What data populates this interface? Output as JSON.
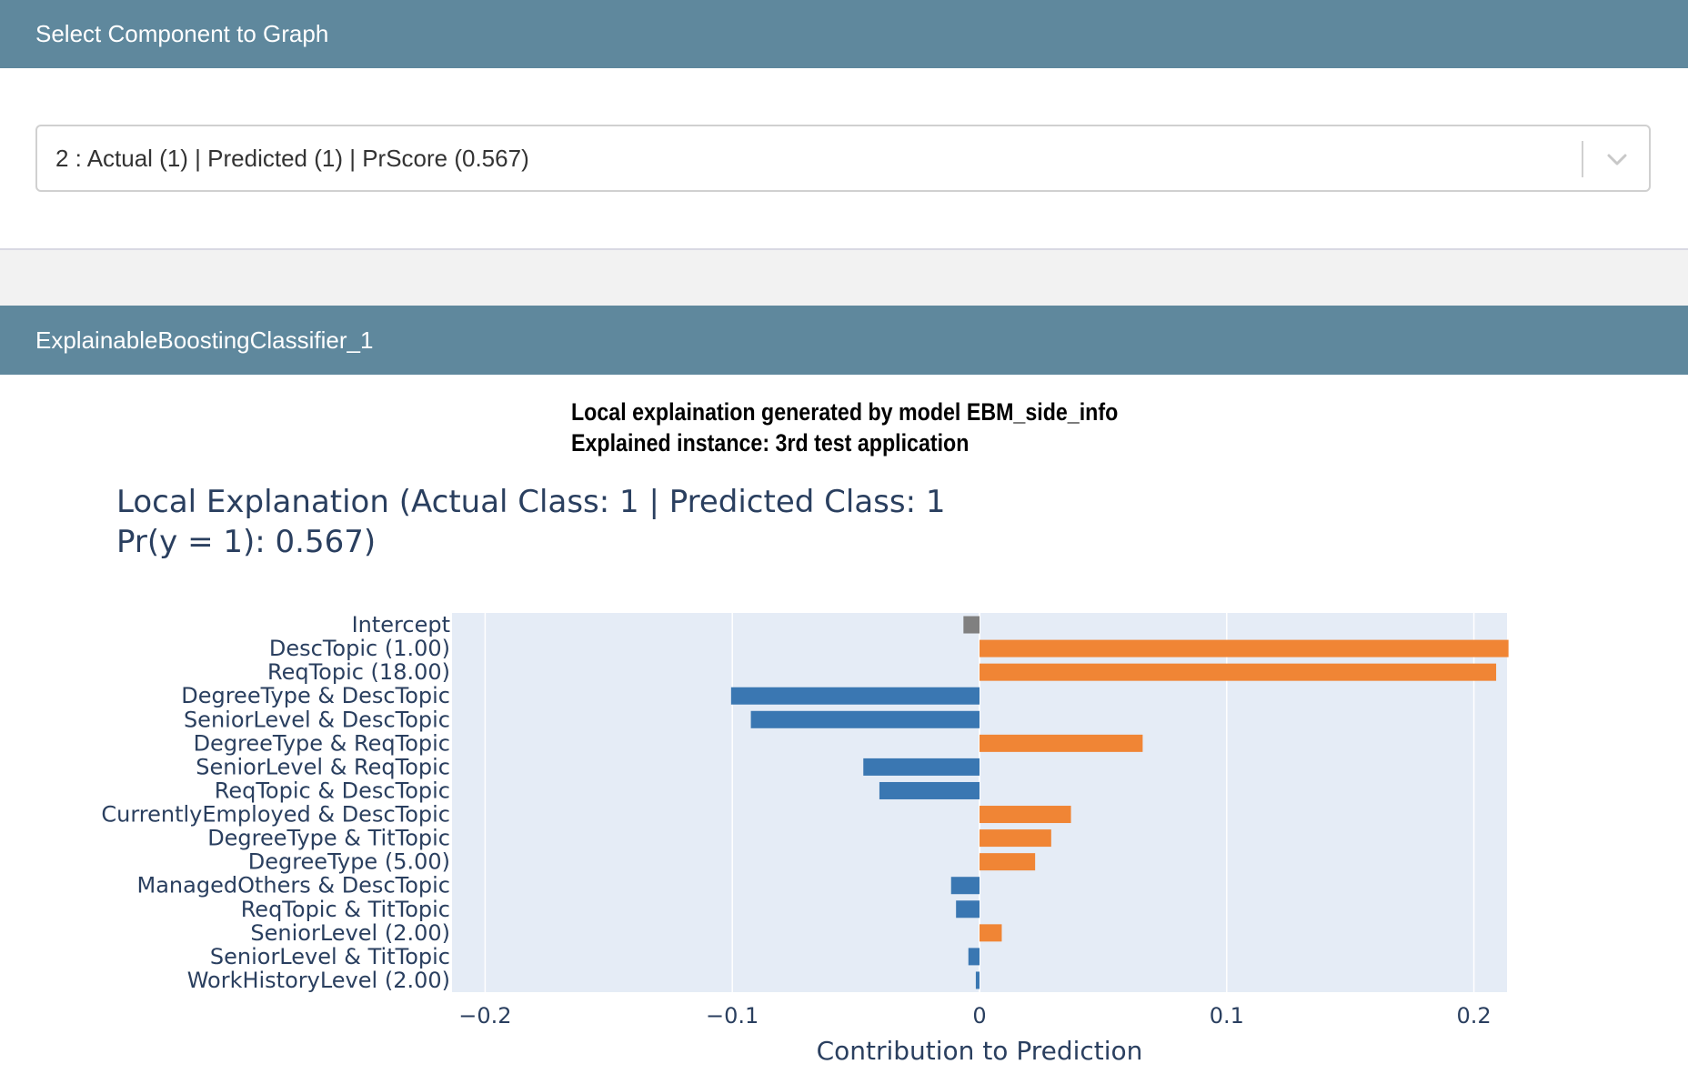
{
  "header_select": {
    "title": "Select Component to Graph"
  },
  "component_select": {
    "selected": "2 : Actual (1) | Predicted (1) | PrScore (0.567)"
  },
  "header_model": {
    "title": "ExplainableBoostingClassifier_1"
  },
  "caption": {
    "line1": "Local explaination generated by model EBM_side_info",
    "line2": "Explained instance: 3rd test application"
  },
  "chart_data": {
    "type": "bar",
    "orientation": "horizontal",
    "title": "Local Explanation (Actual Class: 1 | Predicted Class: 1",
    "subtitle": "Pr(y = 1): 0.567)",
    "xlabel": "Contribution to Prediction",
    "ylabel": "",
    "xlim": [
      -0.214,
      0.214
    ],
    "xticks": [
      -0.2,
      -0.1,
      0,
      0.1,
      0.2
    ],
    "xtick_labels": [
      "−0.2",
      "−0.1",
      "0",
      "0.1",
      "0.2"
    ],
    "grid": true,
    "colors": {
      "positive": "#f08535",
      "negative": "#3a77b2",
      "intercept": "#808080",
      "plot_bg": "#e5ecf6"
    },
    "categories": [
      "Intercept",
      "DescTopic (1.00)",
      "ReqTopic (18.00)",
      "DegreeType & DescTopic",
      "SeniorLevel & DescTopic",
      "DegreeType & ReqTopic",
      "SeniorLevel & ReqTopic",
      "ReqTopic & DescTopic",
      "CurrentlyEmployed & DescTopic",
      "DegreeType & TitTopic",
      "DegreeType (5.00)",
      "ManagedOthers & DescTopic",
      "ReqTopic & TitTopic",
      "SeniorLevel (2.00)",
      "SeniorLevel & TitTopic",
      "WorkHistoryLevel (2.00)"
    ],
    "values": [
      -0.0065,
      0.214,
      0.209,
      -0.1005,
      -0.0925,
      0.066,
      -0.047,
      -0.0405,
      0.037,
      0.029,
      0.0225,
      -0.0115,
      -0.0095,
      0.009,
      -0.0045,
      -0.0015
    ]
  }
}
